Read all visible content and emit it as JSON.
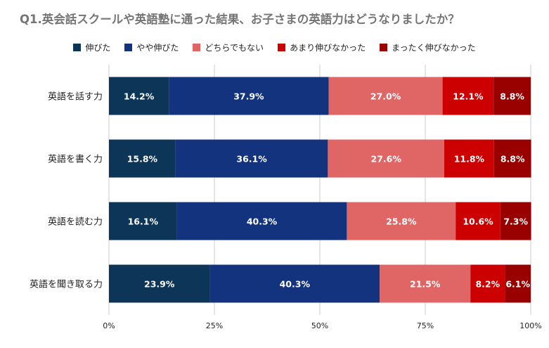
{
  "chart_data": {
    "type": "bar",
    "orientation": "horizontal",
    "stacked": true,
    "title": "Q1.英会話スクールや英語塾に通った結果、お子さまの英語力はどうなりましたか？",
    "categories": [
      "英語を話す力",
      "英語を書く力",
      "英語を読む力",
      "英語を聞き取る力"
    ],
    "series": [
      {
        "name": "伸びた",
        "color": "#0c3558",
        "values": [
          14.2,
          15.8,
          16.1,
          23.9
        ],
        "labels": [
          "14.2%",
          "15.8%",
          "16.1%",
          "23.9%"
        ]
      },
      {
        "name": "やや伸びた",
        "color": "#14337f",
        "values": [
          37.9,
          36.1,
          40.3,
          40.3
        ],
        "labels": [
          "37.9%",
          "36.1%",
          "40.3%",
          "40.3%"
        ]
      },
      {
        "name": "どちらでもない",
        "color": "#e06666",
        "values": [
          27.0,
          27.6,
          25.8,
          21.5
        ],
        "labels": [
          "27.0%",
          "27.6%",
          "25.8%",
          "21.5%"
        ]
      },
      {
        "name": "あまり伸びなかった",
        "color": "#cc0000",
        "values": [
          12.1,
          11.8,
          10.6,
          8.2
        ],
        "labels": [
          "12.1%",
          "11.8%",
          "10.6%",
          "8.2%"
        ]
      },
      {
        "name": "まったく伸びなかった",
        "color": "#990000",
        "values": [
          8.8,
          8.8,
          7.3,
          6.1
        ],
        "labels": [
          "8.8%",
          "8.8%",
          "7.3%",
          "6.1%"
        ]
      }
    ],
    "xlim": [
      0,
      100
    ],
    "xticks": [
      0,
      25,
      50,
      75,
      100
    ],
    "xtick_labels": [
      "0%",
      "25%",
      "50%",
      "75%",
      "100%"
    ],
    "legend_position": "top",
    "grid": true
  }
}
